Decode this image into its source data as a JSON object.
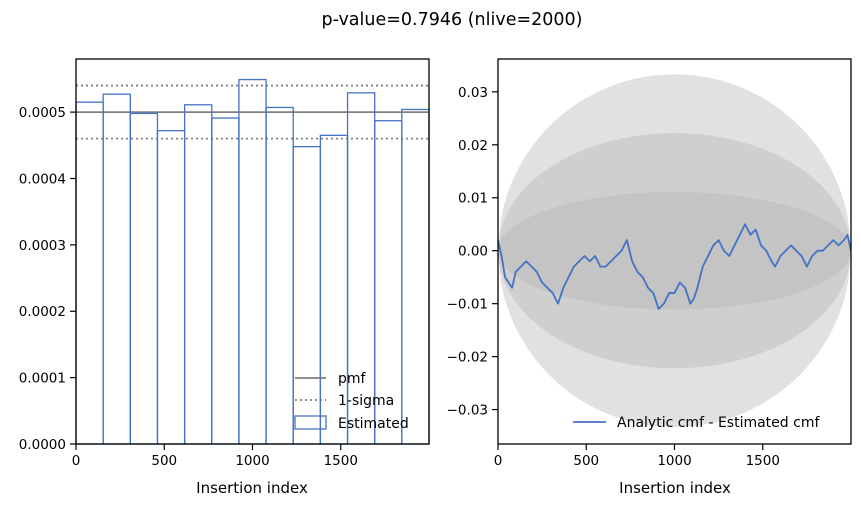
{
  "figure": {
    "suptitle": "p-value=0.7946 (nlive=2000)"
  },
  "colors": {
    "series": "#4472c4",
    "pmf": "#808080",
    "band_fill": "#b4b4b4"
  },
  "chart_data": [
    {
      "type": "histogram",
      "xlabel": "Insertion index",
      "ylabel": "",
      "xlim": [
        0,
        2000
      ],
      "ylim": [
        0,
        0.00058
      ],
      "xticks": [
        0,
        500,
        1000,
        1500
      ],
      "xtick_labels": [
        "0",
        "500",
        "1000",
        "1500"
      ],
      "yticks": [
        0,
        0.0001,
        0.0002,
        0.0003,
        0.0004,
        0.0005
      ],
      "ytick_labels": [
        "0.0000",
        "0.0001",
        "0.0002",
        "0.0003",
        "0.0004",
        "0.0005"
      ],
      "pmf": 0.0005,
      "sigma_band": [
        0.00046,
        0.00054
      ],
      "bin_edges": [
        0,
        153.8,
        307.7,
        461.5,
        615.4,
        769.2,
        923.1,
        1076.9,
        1230.8,
        1384.6,
        1538.5,
        1692.3,
        1846.2,
        2000
      ],
      "estimated": [
        0.000515,
        0.000527,
        0.000498,
        0.000472,
        0.000511,
        0.000491,
        0.000549,
        0.000507,
        0.000448,
        0.000465,
        0.000529,
        0.000487,
        0.000504
      ],
      "legend": {
        "position": "lower right",
        "entries": [
          {
            "label": "pmf",
            "style": "solid"
          },
          {
            "label": "1-sigma",
            "style": "dotted"
          },
          {
            "label": "Estimated",
            "style": "step"
          }
        ]
      },
      "grid": false
    },
    {
      "type": "line",
      "xlabel": "Insertion index",
      "ylabel": "",
      "xlim": [
        0,
        2000
      ],
      "ylim": [
        -0.0365,
        0.0362
      ],
      "xticks": [
        0,
        500,
        1000,
        1500
      ],
      "xtick_labels": [
        "0",
        "500",
        "1000",
        "1500"
      ],
      "yticks": [
        -0.03,
        -0.02,
        -0.01,
        0.0,
        0.01,
        0.02,
        0.03
      ],
      "ytick_labels": [
        "−0.03",
        "−0.02",
        "−0.01",
        "0.00",
        "0.01",
        "0.02",
        "0.03"
      ],
      "sigma_bands": [
        {
          "sigma": 1,
          "max_half_width": 0.0111
        },
        {
          "sigma": 2,
          "max_half_width": 0.0222
        },
        {
          "sigma": 3,
          "max_half_width": 0.0333
        }
      ],
      "series": [
        {
          "name": "Analytic cmf - Estimated cmf",
          "x": [
            0,
            20,
            40,
            60,
            80,
            100,
            130,
            160,
            190,
            220,
            250,
            280,
            310,
            340,
            370,
            400,
            430,
            460,
            490,
            520,
            550,
            580,
            610,
            640,
            670,
            700,
            730,
            760,
            790,
            820,
            850,
            880,
            910,
            940,
            970,
            1000,
            1030,
            1060,
            1090,
            1110,
            1130,
            1160,
            1190,
            1220,
            1250,
            1280,
            1310,
            1340,
            1370,
            1400,
            1430,
            1460,
            1490,
            1520,
            1550,
            1570,
            1600,
            1630,
            1660,
            1690,
            1720,
            1750,
            1780,
            1810,
            1840,
            1870,
            1900,
            1930,
            1960,
            1980,
            2000
          ],
          "y": [
            0.002,
            -0.001,
            -0.005,
            -0.006,
            -0.007,
            -0.004,
            -0.003,
            -0.002,
            -0.003,
            -0.004,
            -0.006,
            -0.007,
            -0.008,
            -0.01,
            -0.007,
            -0.005,
            -0.003,
            -0.002,
            -0.001,
            -0.002,
            -0.001,
            -0.003,
            -0.003,
            -0.002,
            -0.001,
            0.0,
            0.002,
            -0.002,
            -0.004,
            -0.005,
            -0.007,
            -0.008,
            -0.011,
            -0.01,
            -0.008,
            -0.008,
            -0.006,
            -0.007,
            -0.01,
            -0.009,
            -0.007,
            -0.003,
            -0.001,
            0.001,
            0.002,
            0.0,
            -0.001,
            0.001,
            0.003,
            0.005,
            0.003,
            0.004,
            0.001,
            0.0,
            -0.002,
            -0.003,
            -0.001,
            0.0,
            0.001,
            0.0,
            -0.001,
            -0.003,
            -0.001,
            0.0,
            0.0,
            0.001,
            0.002,
            0.001,
            0.002,
            0.003,
            0.0
          ]
        }
      ],
      "legend": {
        "position": "lower right",
        "entries": [
          {
            "label": "Analytic cmf - Estimated cmf",
            "style": "solid"
          }
        ]
      },
      "grid": false
    }
  ]
}
